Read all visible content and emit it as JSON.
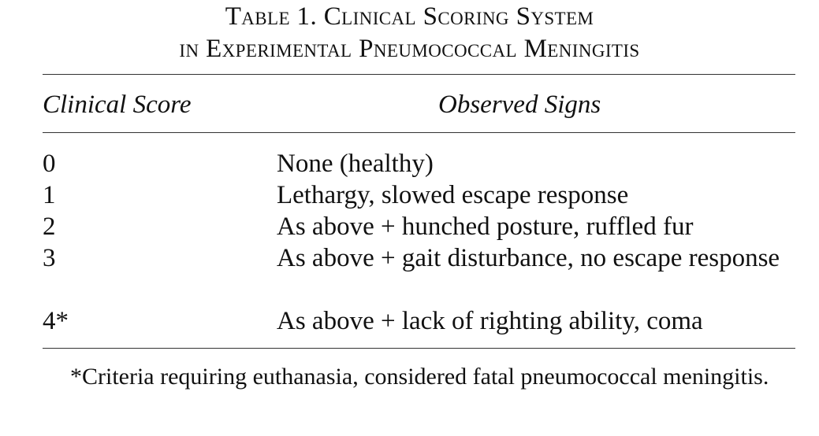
{
  "title": {
    "line1": "Table 1.   Clinical Scoring System",
    "line2": "in Experimental Pneumococcal Meningitis"
  },
  "columns": {
    "score": "Clinical Score",
    "signs": "Observed Signs"
  },
  "rows": [
    {
      "score": "0",
      "signs": "None (healthy)"
    },
    {
      "score": "1",
      "signs": "Lethargy, slowed escape response"
    },
    {
      "score": "2",
      "signs": "As above + hunched posture, ruffled fur"
    },
    {
      "score": "3",
      "signs": "As above + gait disturbance, no escape response"
    },
    {
      "score": "4*",
      "signs": "As above + lack of righting ability, coma"
    }
  ],
  "footnote": "*Criteria requiring euthanasia, considered fatal pneumococcal meningitis."
}
